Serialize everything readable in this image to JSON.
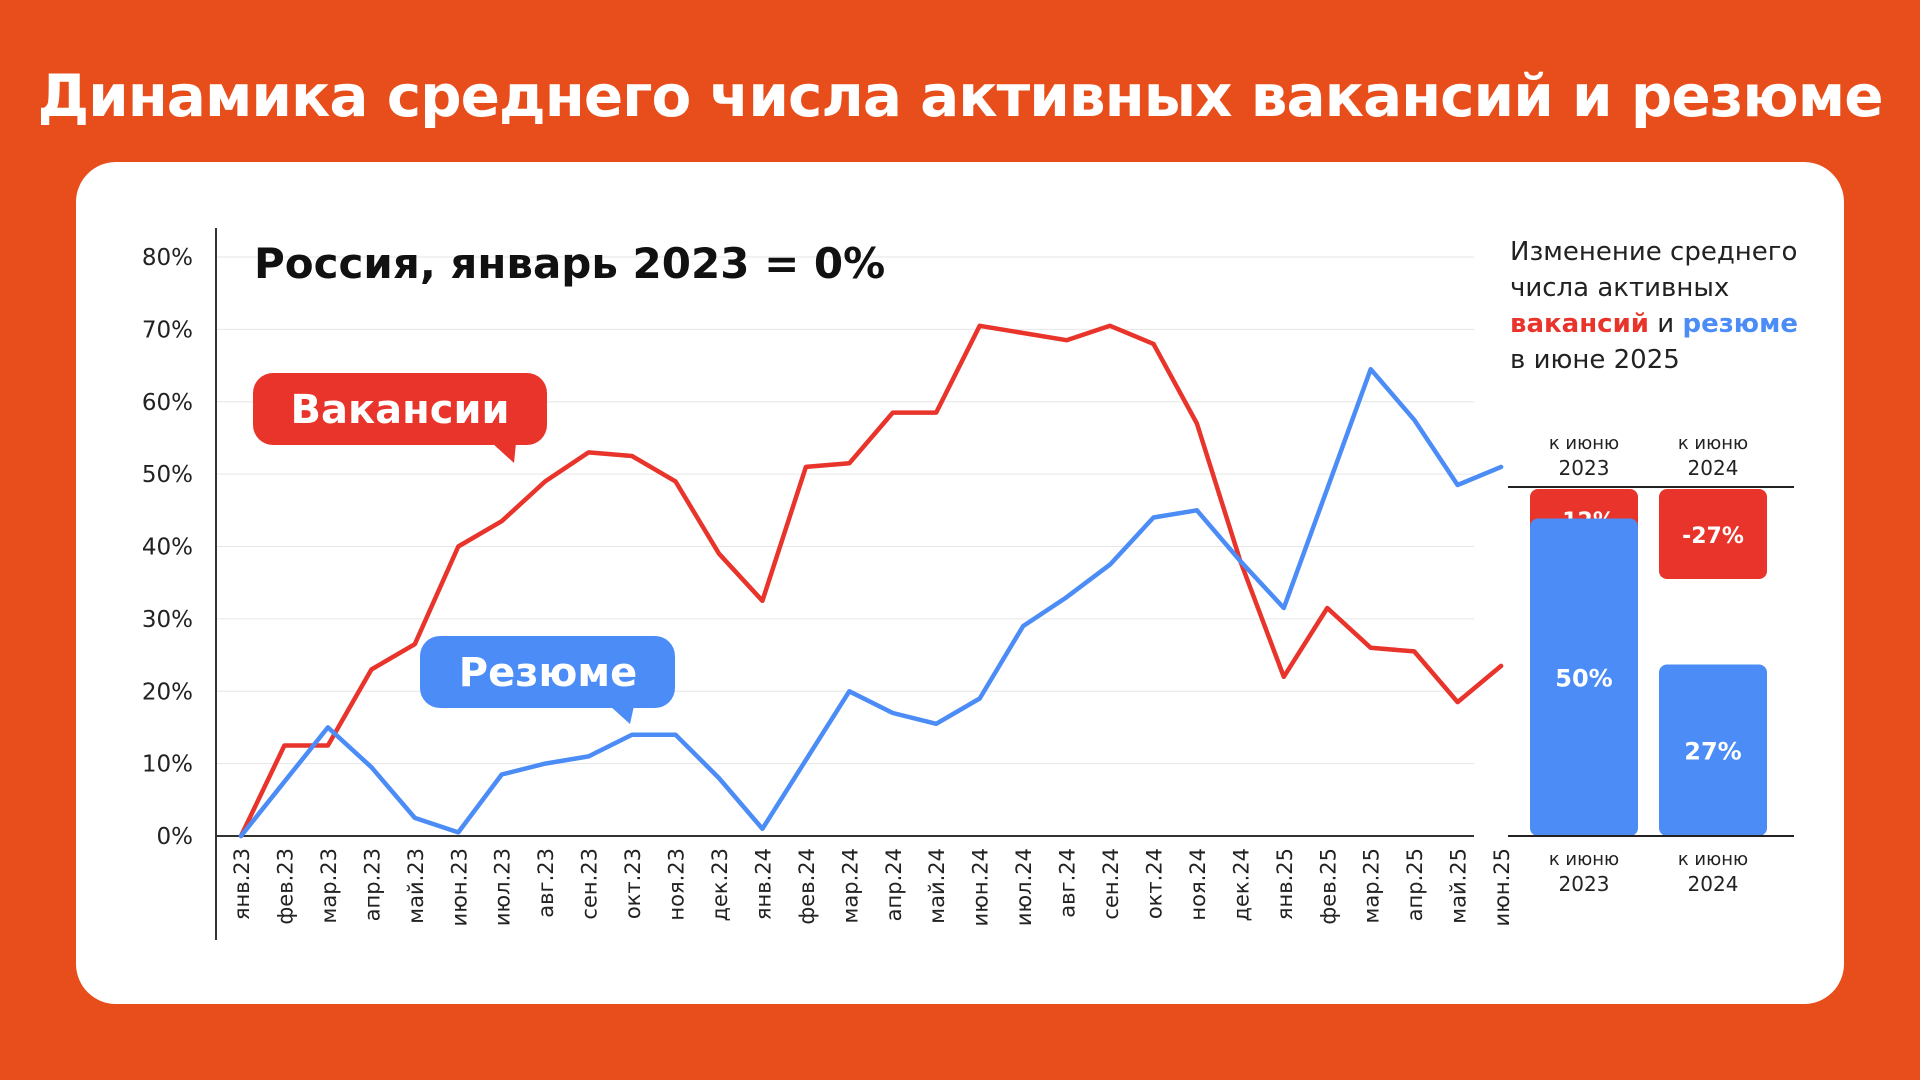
{
  "title": "Динамика среднего числа активных вакансий и резюме",
  "colors": {
    "background": "#E84E1B",
    "vacancies": "#E8342A",
    "resumes": "#4B8CF6"
  },
  "chart_data": [
    {
      "type": "line",
      "subtitle": "Россия, январь 2023 = 0%",
      "categories": [
        "янв.23",
        "фев.23",
        "мар.23",
        "апр.23",
        "май.23",
        "июн.23",
        "июл.23",
        "авг.23",
        "сен.23",
        "окт.23",
        "ноя.23",
        "дек.23",
        "янв.24",
        "фев.24",
        "мар.24",
        "апр.24",
        "май.24",
        "июн.24",
        "июл.24",
        "авг.24",
        "сен.24",
        "окт.24",
        "ноя.24",
        "дек.24",
        "янв.25",
        "фев.25",
        "мар.25",
        "апр.25",
        "май.25",
        "июн.25"
      ],
      "y_ticks": [
        "0%",
        "10%",
        "20%",
        "30%",
        "40%",
        "50%",
        "60%",
        "70%",
        "80%"
      ],
      "ylim": [
        0,
        80
      ],
      "grid": true,
      "series": [
        {
          "name": "Вакансии",
          "color": "#E8342A",
          "values": [
            0,
            12.5,
            12.5,
            23,
            26.5,
            40,
            43.5,
            49,
            53,
            52.5,
            49,
            39,
            32.5,
            51,
            51.5,
            58.5,
            58.5,
            70.5,
            69.5,
            68.5,
            70.5,
            68,
            57,
            38,
            22,
            31.5,
            26,
            25.5,
            18.5,
            23.5
          ]
        },
        {
          "name": "Резюме",
          "color": "#4B8CF6",
          "values": [
            0,
            7.5,
            15,
            9.5,
            2.5,
            0.5,
            8.5,
            10,
            11,
            14,
            14,
            8,
            1,
            10.5,
            20,
            17,
            15.5,
            19,
            29,
            33,
            37.5,
            44,
            45,
            38,
            31.5,
            48,
            64.5,
            57.5,
            48.5,
            51
          ]
        }
      ]
    },
    {
      "type": "bar",
      "title": "Изменение среднего числа активных вакансий и резюме в июне 2025",
      "title_parts": {
        "line1": "Изменение среднего",
        "line2": "числа активных",
        "vacancies_word": "вакансий",
        "and_word": "и",
        "resumes_word": "резюме",
        "line4": "в июне 2025"
      },
      "categories": [
        {
          "small": "к июню",
          "year": "2023"
        },
        {
          "small": "к июню",
          "year": "2024"
        }
      ],
      "series": [
        {
          "name": "вакансий",
          "color": "#E8342A",
          "values": [
            -12,
            -27
          ],
          "labels": [
            "-12%",
            "-27%"
          ]
        },
        {
          "name": "резюме",
          "color": "#4B8CF6",
          "values": [
            50,
            27
          ],
          "labels": [
            "50%",
            "27%"
          ]
        }
      ]
    }
  ]
}
